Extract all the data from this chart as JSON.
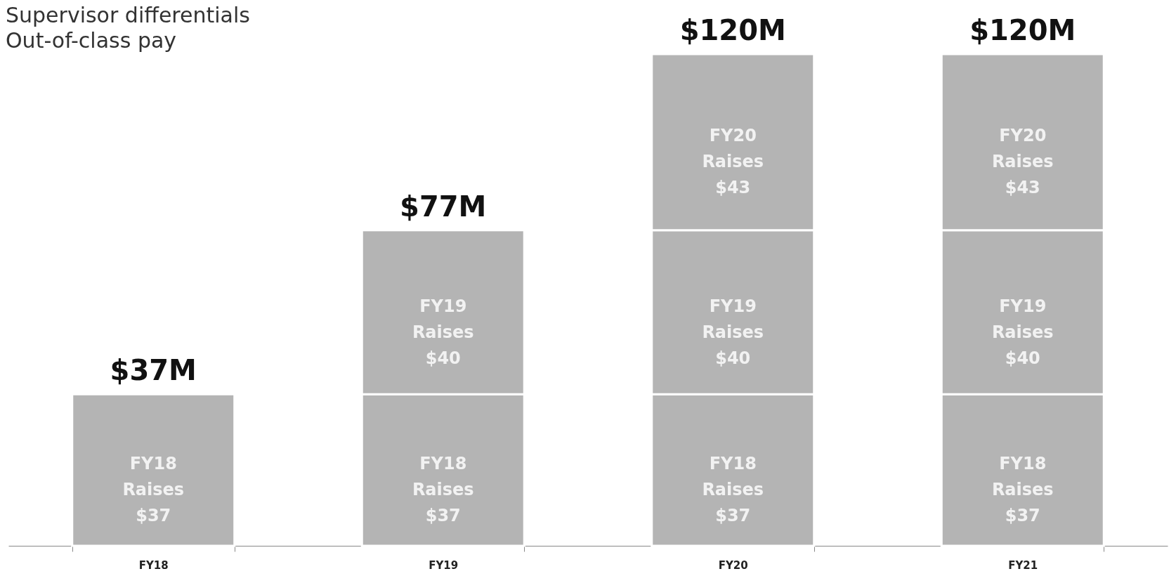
{
  "chart_data": {
    "type": "bar",
    "stacked": true,
    "categories": [
      "FY18",
      "FY19",
      "FY20",
      "FY21"
    ],
    "series": [
      {
        "name": "FY18 Raises",
        "color": "#b4b4b4",
        "values": [
          37,
          37,
          37,
          37
        ],
        "value_labels": [
          "$37",
          "$37",
          "$37",
          "$37"
        ]
      },
      {
        "name": "FY19 Raises",
        "color": "#b4b4b4",
        "values": [
          null,
          40,
          40,
          40
        ],
        "value_labels": [
          null,
          "$40",
          "$40",
          "$40"
        ]
      },
      {
        "name": "FY20 Raises",
        "color": "#b4b4b4",
        "values": [
          null,
          null,
          43,
          43
        ],
        "value_labels": [
          null,
          null,
          "$43",
          "$43"
        ]
      }
    ],
    "totals": [
      "$37M",
      "$77M",
      "$120M",
      "$120M"
    ],
    "annotations": [
      "Supervisor differentials",
      "Out-of-class pay"
    ]
  }
}
